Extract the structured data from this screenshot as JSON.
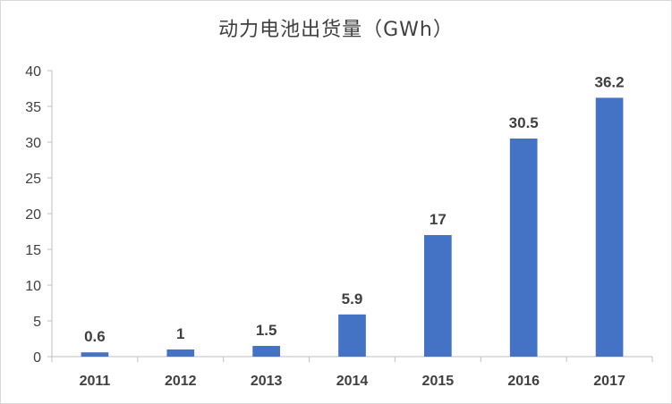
{
  "chart_data": {
    "type": "bar",
    "title": "动力电池出货量（GWh）",
    "categories": [
      "2011",
      "2012",
      "2013",
      "2014",
      "2015",
      "2016",
      "2017"
    ],
    "values": [
      0.6,
      1,
      1.5,
      5.9,
      17,
      30.5,
      36.2
    ],
    "data_labels": [
      "0.6",
      "1",
      "1.5",
      "5.9",
      "17",
      "30.5",
      "36.2"
    ],
    "ylim": [
      0,
      40
    ],
    "yticks": [
      0,
      5,
      10,
      15,
      20,
      25,
      30,
      35,
      40
    ],
    "xlabel": "",
    "ylabel": "",
    "grid": false,
    "legend": "none",
    "bar_color": "#4472C4"
  }
}
